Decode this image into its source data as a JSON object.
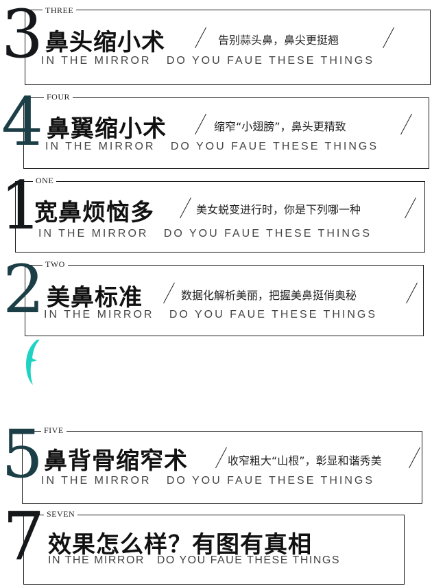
{
  "sections": [
    {
      "number": "3",
      "english": "THREE",
      "title": "鼻头缩小术",
      "subtitle": "告别蒜头鼻，鼻尖更挺翘",
      "tagline": "IN THE MIRROR   DO YOU FAUE THESE THINGS"
    },
    {
      "number": "4",
      "english": "FOUR",
      "title": "鼻翼缩小术",
      "subtitle": "缩窄“小翅膀”，鼻头更精致",
      "tagline": "IN THE MIRROR   DO YOU FAUE THESE THINGS"
    },
    {
      "number": "1",
      "english": "ONE",
      "title": "宽鼻烦恼多",
      "subtitle": "美女蜕变进行时，你是下列哪一种",
      "tagline": "IN THE MIRROR   DO YOU FAUE THESE THINGS"
    },
    {
      "number": "2",
      "english": "TWO",
      "title": "美鼻标准",
      "subtitle": "数据化解析美丽，把握美鼻挺俏奥秘",
      "tagline": "IN THE MIRROR   DO YOU FAUE THESE THINGS"
    },
    {
      "number": "5",
      "english": "FIVE",
      "title": "鼻背骨缩窄术",
      "subtitle": "收窄粗大“山根”，彰显和谐秀美",
      "tagline": "IN THE MIRROR   DO YOU FAUE THESE THINGS"
    },
    {
      "number": "7",
      "english": "SEVEN",
      "title": "效果怎么样？有图有真相",
      "subtitle": "",
      "tagline": "IN THE MIRROR   DO YOU FAUE THESE THINGS"
    }
  ],
  "accent_colors": {
    "number_dark": "#14181b",
    "number_teal": "#1c3e46",
    "brush_mark": "#1fd3c4"
  }
}
